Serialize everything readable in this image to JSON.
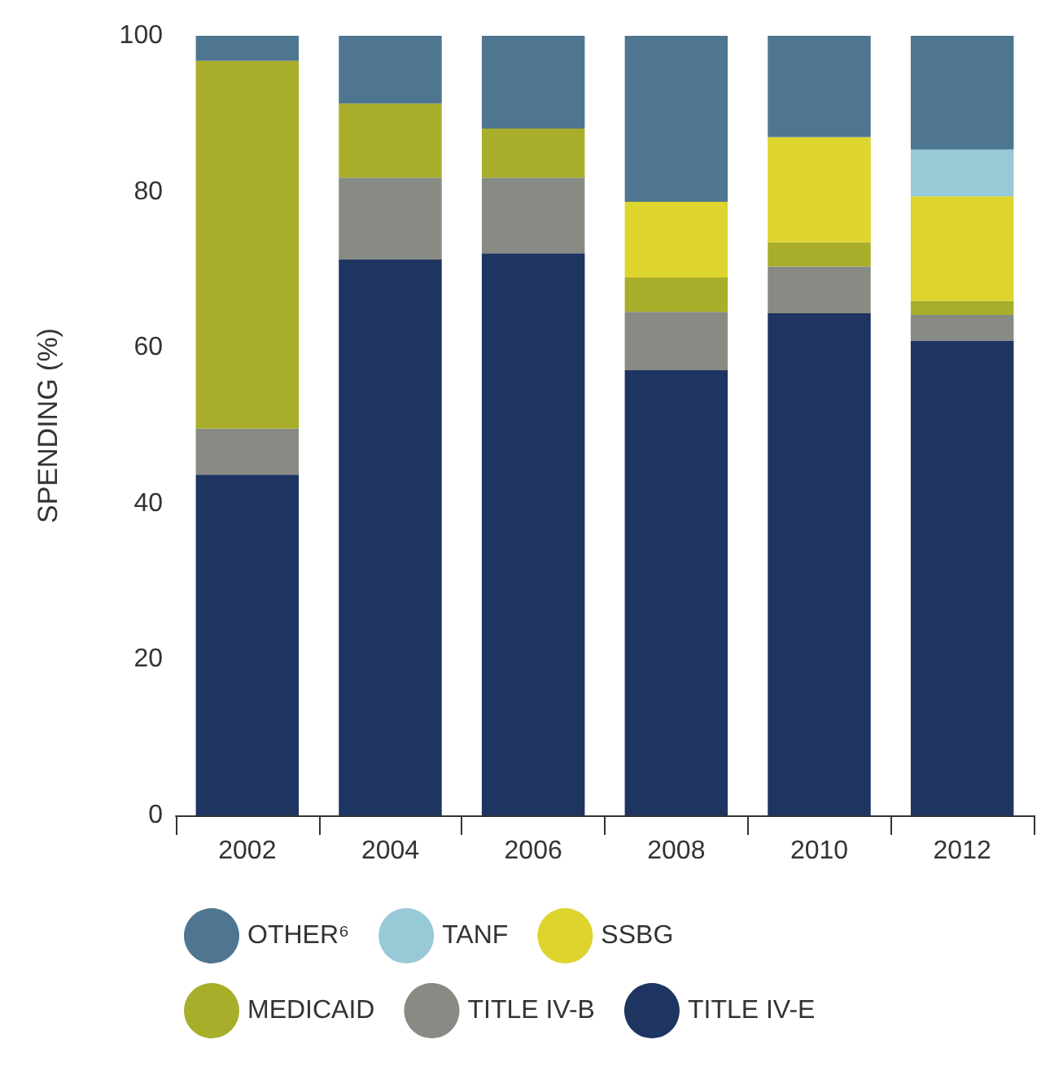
{
  "chart_data": {
    "type": "bar",
    "stacked": true,
    "ylabel": "SPENDING (%)",
    "categories": [
      "2002",
      "2004",
      "2006",
      "2008",
      "2010",
      "2012"
    ],
    "ylim": [
      0,
      100
    ],
    "yticks": [
      0,
      20,
      40,
      60,
      80,
      100
    ],
    "grid": false,
    "legend": "bottom",
    "marker": "circle",
    "series": [
      {
        "name": "TITLE IV-E",
        "color": "#1e3461",
        "values": [
          43.7,
          71.3,
          72.1,
          57.1,
          64.4,
          60.9
        ]
      },
      {
        "name": "TITLE IV-B",
        "color": "#878b84",
        "values": [
          5.9,
          10.5,
          9.7,
          7.5,
          6.0,
          3.3
        ]
      },
      {
        "name": "MEDICAID",
        "color": "#a9ae2a",
        "values": [
          47.2,
          9.5,
          6.3,
          4.4,
          3.1,
          1.8
        ]
      },
      {
        "name": "SSBG",
        "color": "#ddd42e",
        "values": [
          0,
          0,
          0,
          9.7,
          13.5,
          13.4
        ]
      },
      {
        "name": "TANF",
        "color": "#97c9d6",
        "values": [
          0,
          0,
          0,
          0,
          0,
          6.0
        ]
      },
      {
        "name": "OTHER⁶",
        "color": "#4f7691",
        "values": [
          3.2,
          8.7,
          11.9,
          21.3,
          13.0,
          14.6
        ]
      }
    ]
  }
}
